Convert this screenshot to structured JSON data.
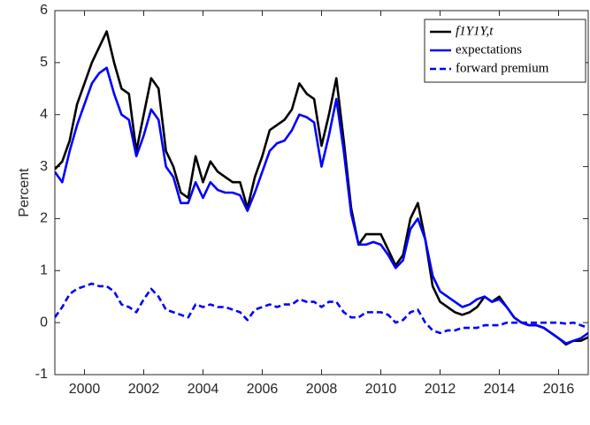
{
  "chart_data": {
    "type": "line",
    "ylabel": "Percent",
    "xlim": [
      1999,
      2017
    ],
    "ylim": [
      -1,
      6
    ],
    "xticks": [
      2000,
      2002,
      2004,
      2006,
      2008,
      2010,
      2012,
      2014,
      2016
    ],
    "yticks": [
      -1,
      0,
      1,
      2,
      3,
      4,
      5,
      6
    ],
    "legend": "top-right",
    "x": [
      1999,
      1999.25,
      1999.5,
      1999.75,
      2000,
      2000.25,
      2000.5,
      2000.75,
      2001,
      2001.25,
      2001.5,
      2001.75,
      2002,
      2002.25,
      2002.5,
      2002.75,
      2003,
      2003.25,
      2003.5,
      2003.75,
      2004,
      2004.25,
      2004.5,
      2004.75,
      2005,
      2005.25,
      2005.5,
      2005.75,
      2006,
      2006.25,
      2006.5,
      2006.75,
      2007,
      2007.25,
      2007.5,
      2007.75,
      2008,
      2008.25,
      2008.5,
      2008.75,
      2009,
      2009.25,
      2009.5,
      2009.75,
      2010,
      2010.25,
      2010.5,
      2010.75,
      2011,
      2011.25,
      2011.5,
      2011.75,
      2012,
      2012.25,
      2012.5,
      2012.75,
      2013,
      2013.25,
      2013.5,
      2013.75,
      2014,
      2014.25,
      2014.5,
      2014.75,
      2015,
      2015.25,
      2015.5,
      2015.75,
      2016,
      2016.25,
      2016.5,
      2016.75,
      2017
    ],
    "series": [
      {
        "name": "f1Y1Y,t",
        "color": "#000000",
        "style": "solid",
        "values": [
          2.95,
          3.1,
          3.5,
          4.2,
          4.6,
          5.0,
          5.3,
          5.6,
          5.0,
          4.5,
          4.4,
          3.3,
          4.0,
          4.7,
          4.5,
          3.3,
          3.0,
          2.5,
          2.4,
          3.2,
          2.7,
          3.1,
          2.9,
          2.8,
          2.7,
          2.7,
          2.2,
          2.8,
          3.2,
          3.7,
          3.8,
          3.9,
          4.1,
          4.6,
          4.4,
          4.3,
          3.4,
          4.0,
          4.7,
          3.5,
          2.2,
          1.5,
          1.7,
          1.7,
          1.7,
          1.4,
          1.1,
          1.3,
          2.0,
          2.3,
          1.6,
          0.7,
          0.4,
          0.3,
          0.2,
          0.15,
          0.2,
          0.3,
          0.5,
          0.4,
          0.5,
          0.3,
          0.1,
          0.0,
          -0.05,
          -0.05,
          -0.1,
          -0.2,
          -0.3,
          -0.42,
          -0.35,
          -0.35,
          -0.28
        ]
      },
      {
        "name": "expectations",
        "color": "#0000ff",
        "style": "solid",
        "values": [
          2.9,
          2.7,
          3.3,
          3.8,
          4.2,
          4.6,
          4.8,
          4.9,
          4.4,
          4.0,
          3.9,
          3.2,
          3.6,
          4.1,
          3.9,
          3.0,
          2.8,
          2.3,
          2.3,
          2.7,
          2.4,
          2.7,
          2.55,
          2.5,
          2.5,
          2.45,
          2.15,
          2.5,
          2.9,
          3.3,
          3.45,
          3.5,
          3.7,
          4.0,
          3.95,
          3.85,
          3.0,
          3.6,
          4.3,
          3.3,
          2.1,
          1.5,
          1.5,
          1.55,
          1.5,
          1.3,
          1.05,
          1.2,
          1.8,
          2.0,
          1.6,
          0.9,
          0.6,
          0.5,
          0.4,
          0.3,
          0.35,
          0.45,
          0.5,
          0.4,
          0.45,
          0.3,
          0.1,
          0.0,
          -0.05,
          -0.05,
          -0.1,
          -0.2,
          -0.3,
          -0.4,
          -0.35,
          -0.3,
          -0.2
        ]
      },
      {
        "name": "forward premium",
        "color": "#0000ff",
        "style": "dashed",
        "values": [
          0.1,
          0.3,
          0.55,
          0.65,
          0.7,
          0.75,
          0.7,
          0.7,
          0.6,
          0.35,
          0.3,
          0.2,
          0.45,
          0.65,
          0.5,
          0.25,
          0.2,
          0.15,
          0.1,
          0.35,
          0.3,
          0.35,
          0.3,
          0.3,
          0.25,
          0.2,
          0.05,
          0.25,
          0.3,
          0.35,
          0.3,
          0.35,
          0.35,
          0.45,
          0.4,
          0.4,
          0.3,
          0.4,
          0.4,
          0.2,
          0.1,
          0.1,
          0.2,
          0.2,
          0.2,
          0.15,
          0.0,
          0.05,
          0.2,
          0.25,
          0.0,
          -0.15,
          -0.2,
          -0.15,
          -0.15,
          -0.1,
          -0.1,
          -0.1,
          -0.05,
          -0.05,
          -0.05,
          0.0,
          0.0,
          0.0,
          0.0,
          0.0,
          0.0,
          0.0,
          0.0,
          -0.02,
          0.0,
          -0.05,
          -0.1
        ]
      }
    ]
  }
}
